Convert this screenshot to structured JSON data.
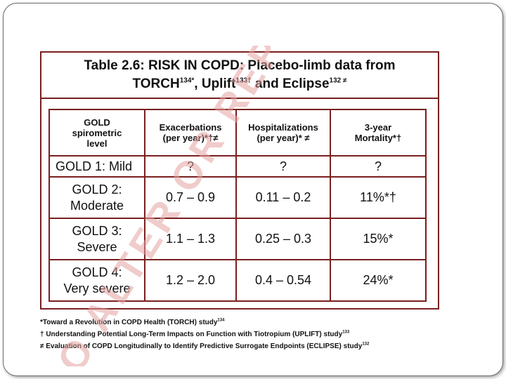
{
  "title": {
    "line1": "Table 2.6:  RISK IN COPD: Placebo-limb data from",
    "line2_a": "TORCH",
    "line2_a_sup": "134*",
    "line2_b": ", Uplift",
    "line2_b_sup": "133†",
    "line2_c": " and Eclipse",
    "line2_c_sup": "132 ≠"
  },
  "table": {
    "headers": {
      "level_line1": "GOLD",
      "level_line2": "spirometric",
      "level_line3": "level",
      "exac_line1": "Exacerbations",
      "exac_line2": "(per year)*†≠",
      "hosp_line1": "Hospitalizations",
      "hosp_line2": "(per year)* ≠",
      "mort_line1": "3-year",
      "mort_line2": "Mortality*†"
    },
    "rows": [
      {
        "level": "GOLD 1:  Mild",
        "exacerbations": "?",
        "hospitalizations": "?",
        "mortality": "?"
      },
      {
        "level_line1": "GOLD 2:",
        "level_line2": "Moderate",
        "exacerbations": "0.7 – 0.9",
        "hospitalizations": "0.11 – 0.2",
        "mortality": "11%*†"
      },
      {
        "level_line1": "GOLD 3:",
        "level_line2": "Severe",
        "exacerbations": "1.1 – 1.3",
        "hospitalizations": "0.25 – 0.3",
        "mortality": "15%*"
      },
      {
        "level_line1": "GOLD 4:",
        "level_line2": "Very severe",
        "exacerbations": "1.2 – 2.0",
        "hospitalizations": "0.4 – 0.54",
        "mortality": "24%*"
      }
    ]
  },
  "footnotes": {
    "torch": "*Toward a Revolution in COPD Health (TORCH) study",
    "torch_sup": "134",
    "uplift": "†  Understanding Potential Long-Term Impacts on Function with Tiotropium (UPLIFT) study",
    "uplift_sup": "133",
    "eclipse": "≠  Evaluation of COPD Longitudinally to Identify Predictive Surrogate Endpoints (ECLIPSE) study",
    "eclipse_sup": "132"
  },
  "watermark": {
    "text": "O   ALTER OR REP",
    "color": "#e4a3a0"
  },
  "colors": {
    "table_border": "#7a1f1f",
    "frame_border": "#6b6b6b"
  }
}
